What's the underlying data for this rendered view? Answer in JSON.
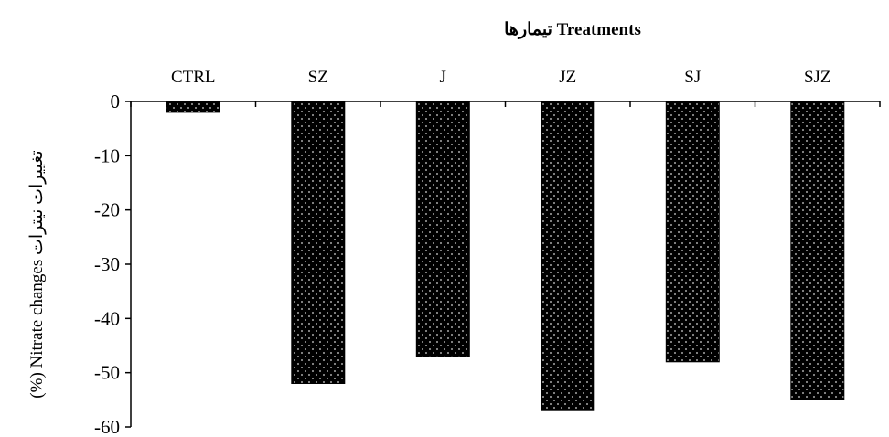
{
  "chart_data": {
    "type": "bar",
    "title": "تیمارها Treatments",
    "xlabel": "",
    "ylabel": "(%) Nitrate changes تغییرات نیترات",
    "categories": [
      "CTRL",
      "SZ",
      "J",
      "JZ",
      "SJ",
      "SJZ"
    ],
    "values": [
      -2,
      -52,
      -47,
      -57,
      -48,
      -55
    ],
    "ylim": [
      -60,
      0
    ],
    "yticks": [
      "0",
      "-10",
      "-20",
      "-30",
      "-40",
      "-50",
      "-60"
    ],
    "x_axis_position": "top",
    "grid": false,
    "legend": "none",
    "bar_color": "#000000",
    "bar_pattern": "white-dots"
  }
}
